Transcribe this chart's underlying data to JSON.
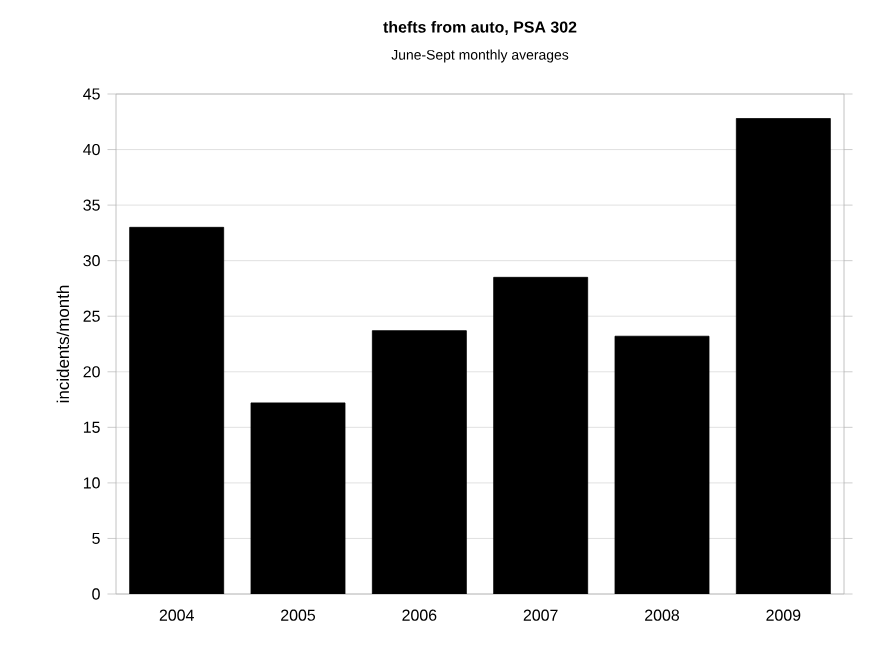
{
  "chart_data": {
    "type": "bar",
    "title": "thefts from auto, PSA 302",
    "subtitle": "June-Sept monthly averages",
    "ylabel": "incidents/month",
    "categories": [
      "2004",
      "2005",
      "2006",
      "2007",
      "2008",
      "2009"
    ],
    "values": [
      33,
      17.2,
      23.7,
      28.5,
      23.2,
      42.8
    ],
    "color": "#000000",
    "ylim": [
      0,
      45
    ],
    "yticks": [
      0,
      5,
      10,
      15,
      20,
      25,
      30,
      35,
      40,
      45
    ],
    "grid": "y"
  }
}
